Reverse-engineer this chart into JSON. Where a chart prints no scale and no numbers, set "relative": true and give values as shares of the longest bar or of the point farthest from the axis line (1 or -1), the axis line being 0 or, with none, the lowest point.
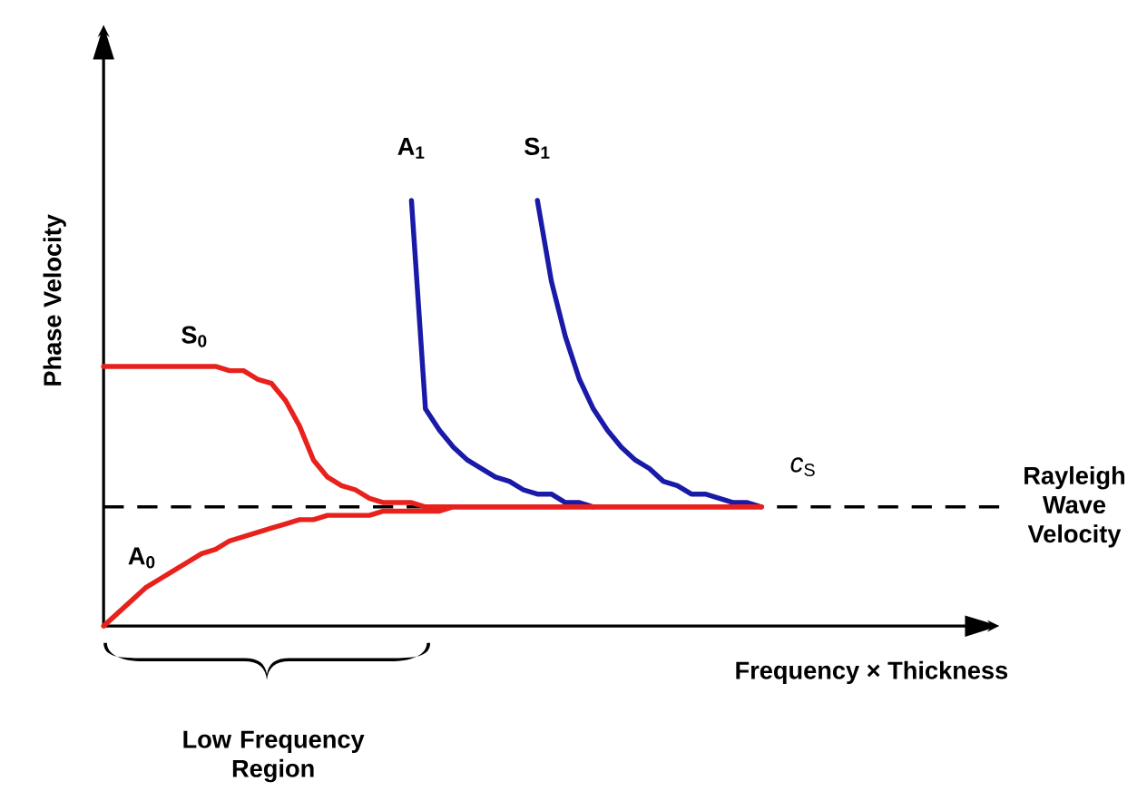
{
  "chart_data": {
    "type": "line",
    "relative": true,
    "legend": false,
    "grid": false,
    "marker": "none",
    "line_style": "solid",
    "xlabel": "Frequency × Thickness",
    "ylabel": "Phase Velocity",
    "categories": [
      null,
      null,
      null,
      null,
      null,
      null,
      null,
      null,
      null,
      null,
      null,
      null,
      null,
      null,
      null,
      null,
      null,
      null,
      null,
      null,
      null,
      null,
      null,
      null,
      null,
      null,
      null,
      null,
      null,
      null,
      null,
      null,
      null,
      null,
      null,
      null,
      null,
      null,
      null,
      null,
      null,
      null,
      null,
      null,
      null,
      null,
      null,
      null,
      null,
      null,
      null,
      null,
      null,
      null,
      null,
      null,
      null,
      null,
      null,
      null,
      null,
      null,
      null,
      null,
      null,
      null,
      null
    ],
    "series": [
      {
        "name": "A$_{1}$",
        "color": "#1a1aa8",
        "values": [
          null,
          null,
          null,
          null,
          null,
          null,
          null,
          null,
          null,
          null,
          null,
          null,
          null,
          null,
          null,
          null,
          null,
          null,
          null,
          null,
          null,
          null,
          1.0,
          0.51,
          0.46,
          0.42,
          0.39,
          0.37,
          0.35,
          0.34,
          0.32,
          0.31,
          0.31,
          0.29,
          0.29,
          0.28,
          null,
          null,
          null,
          null,
          null,
          null,
          null,
          null,
          null,
          null,
          null,
          null,
          null,
          null,
          null,
          null,
          null,
          null,
          null,
          null,
          null,
          null,
          null,
          null,
          null,
          null,
          null,
          null,
          null,
          null,
          null
        ]
      },
      {
        "name": "S$_{1}$",
        "color": "#1a1aa8",
        "values": [
          null,
          null,
          null,
          null,
          null,
          null,
          null,
          null,
          null,
          null,
          null,
          null,
          null,
          null,
          null,
          null,
          null,
          null,
          null,
          null,
          null,
          null,
          null,
          null,
          null,
          null,
          null,
          null,
          null,
          null,
          null,
          1.0,
          0.81,
          0.68,
          0.58,
          0.51,
          0.46,
          0.42,
          0.39,
          0.37,
          0.34,
          0.33,
          0.31,
          0.31,
          0.3,
          0.29,
          0.29,
          0.28,
          null,
          null,
          null,
          null,
          null,
          null,
          null,
          null,
          null,
          null,
          null,
          null,
          null,
          null,
          null,
          null,
          null,
          null,
          null
        ]
      },
      {
        "name": "S$_{0}$",
        "color": "#e8211c",
        "values": [
          0.61,
          0.61,
          0.61,
          0.61,
          0.61,
          0.61,
          0.61,
          0.61,
          0.61,
          0.6,
          0.6,
          0.58,
          0.57,
          0.53,
          0.47,
          0.39,
          0.35,
          0.33,
          0.32,
          0.3,
          0.29,
          0.29,
          0.29,
          0.28,
          0.28,
          0.28,
          0.28,
          0.28,
          0.28,
          0.28,
          0.28,
          0.28,
          0.28,
          0.28,
          0.28,
          0.28,
          0.28,
          0.28,
          0.28,
          0.28,
          0.28,
          0.28,
          0.28,
          0.28,
          0.28,
          0.28,
          0.28,
          0.28,
          null,
          null,
          null,
          null,
          null,
          null,
          null,
          null,
          null,
          null,
          null,
          null,
          null,
          null,
          null,
          null,
          null,
          null,
          null
        ]
      },
      {
        "name": "A$_{0}$",
        "color": "#e8211c",
        "values": [
          0,
          0.03,
          0.06,
          0.09,
          0.11,
          0.13,
          0.15,
          0.17,
          0.18,
          0.2,
          0.21,
          0.22,
          0.23,
          0.24,
          0.25,
          0.25,
          0.26,
          0.26,
          0.26,
          0.26,
          0.27,
          0.27,
          0.27,
          0.27,
          0.27,
          0.28,
          0.28,
          0.28,
          0.28,
          0.28,
          0.28,
          0.28,
          0.28,
          0.28,
          0.28,
          0.28,
          0.28,
          0.28,
          0.28,
          0.28,
          0.28,
          0.28,
          0.28,
          0.28,
          0.28,
          0.28,
          0.28,
          0.28,
          null,
          null,
          null,
          null,
          null,
          null,
          null,
          null,
          null,
          null,
          null,
          null,
          null,
          null,
          null,
          null,
          null,
          null,
          null
        ]
      }
    ],
    "ref_lines": [
      {
        "axis": "y",
        "value": 0.28,
        "label": "Rayleigh Wave Velocity",
        "color": "#000000",
        "line_style": "dashed"
      }
    ],
    "annotations": [
      "*c*$_{S}$",
      "Low Frequency Region"
    ]
  }
}
